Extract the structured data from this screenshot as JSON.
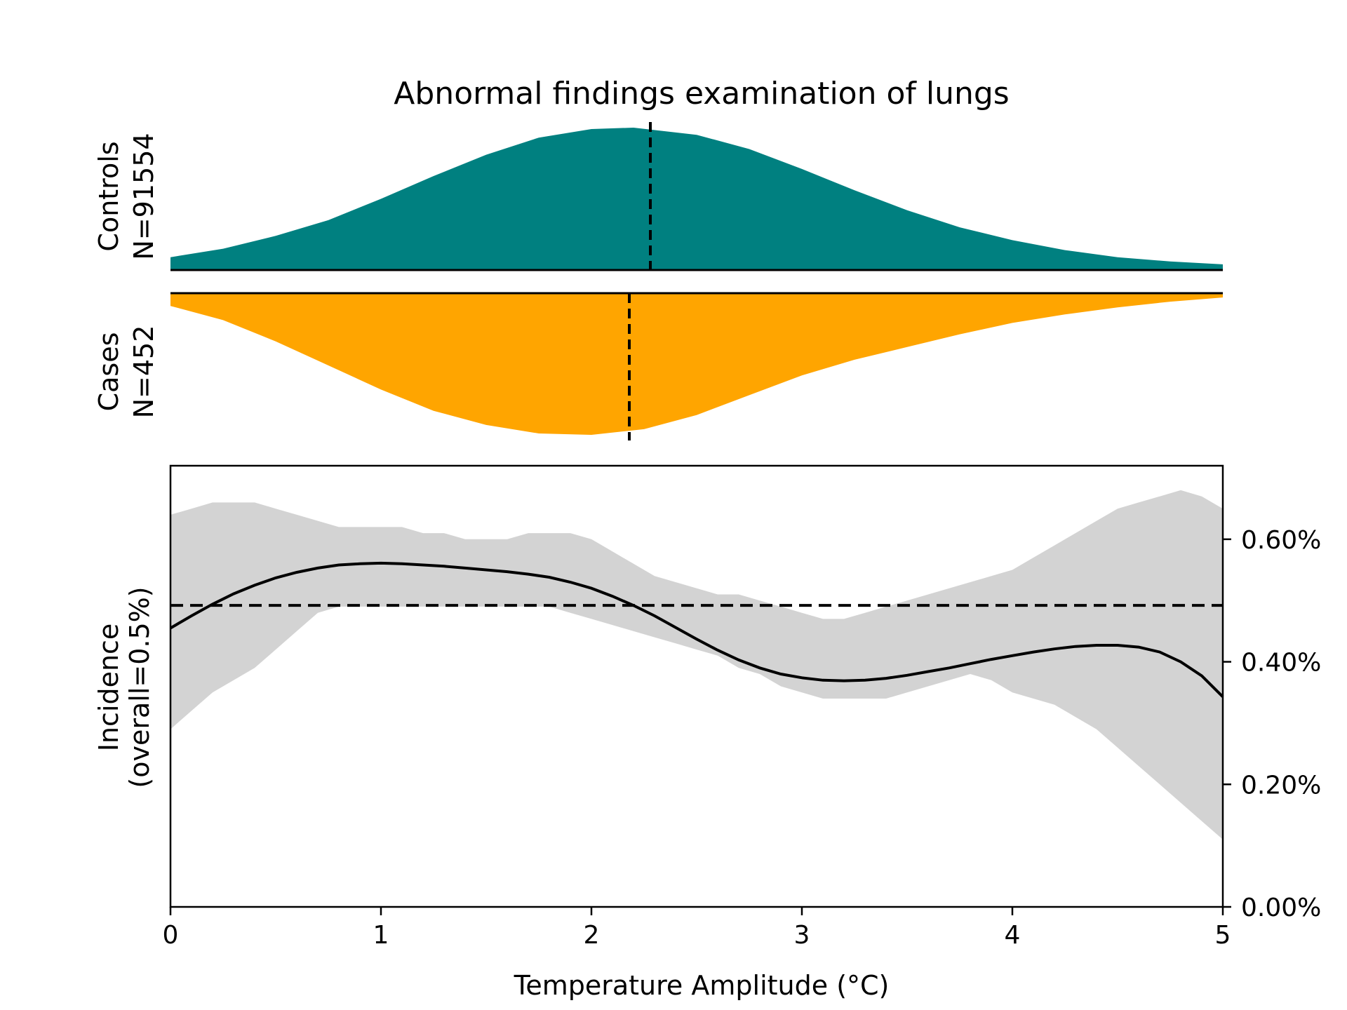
{
  "chart_data": {
    "type": "area",
    "title": "Abnormal findings examination of lungs",
    "xlabel": "Temperature Amplitude (°C)",
    "xlim": [
      0,
      5
    ],
    "x_ticks": [
      "0",
      "1",
      "2",
      "3",
      "4",
      "5"
    ],
    "controls": {
      "label_line1": "Controls",
      "label_line2": "N=91554",
      "color": "#008080",
      "median": 2.28,
      "x": [
        0,
        0.25,
        0.5,
        0.75,
        1.0,
        1.25,
        1.5,
        1.75,
        2.0,
        2.2,
        2.5,
        2.75,
        3.0,
        3.25,
        3.5,
        3.75,
        4.0,
        4.25,
        4.5,
        4.75,
        5.0
      ],
      "density": [
        0.09,
        0.15,
        0.24,
        0.35,
        0.5,
        0.66,
        0.81,
        0.93,
        0.99,
        1.0,
        0.95,
        0.85,
        0.71,
        0.56,
        0.42,
        0.3,
        0.21,
        0.14,
        0.09,
        0.06,
        0.04
      ]
    },
    "cases": {
      "label_line1": "Cases",
      "label_line2": "N=452",
      "color": "#FFA500",
      "median": 2.18,
      "x": [
        0,
        0.25,
        0.5,
        0.75,
        1.0,
        1.25,
        1.5,
        1.75,
        2.0,
        2.25,
        2.5,
        2.75,
        3.0,
        3.25,
        3.5,
        3.75,
        4.0,
        4.25,
        4.5,
        4.75,
        5.0
      ],
      "density": [
        0.09,
        0.19,
        0.34,
        0.51,
        0.68,
        0.83,
        0.93,
        0.99,
        1.0,
        0.96,
        0.86,
        0.72,
        0.58,
        0.47,
        0.38,
        0.29,
        0.21,
        0.15,
        0.1,
        0.06,
        0.03
      ]
    },
    "incidence": {
      "ylabel_line1": "Incidence",
      "ylabel_line2": "(overall=0.5%)",
      "ylim": [
        0,
        0.0072
      ],
      "y_ticks": [
        0,
        0.002,
        0.004,
        0.006
      ],
      "y_tick_labels": [
        "0.00%",
        "0.20%",
        "0.40%",
        "0.60%"
      ],
      "overall": 0.00492,
      "x": [
        0,
        0.1,
        0.2,
        0.3,
        0.4,
        0.5,
        0.6,
        0.7,
        0.8,
        0.9,
        1.0,
        1.1,
        1.2,
        1.3,
        1.4,
        1.5,
        1.6,
        1.7,
        1.8,
        1.9,
        2.0,
        2.1,
        2.2,
        2.3,
        2.4,
        2.5,
        2.6,
        2.7,
        2.8,
        2.9,
        3.0,
        3.1,
        3.2,
        3.3,
        3.4,
        3.5,
        3.6,
        3.7,
        3.8,
        3.9,
        4.0,
        4.1,
        4.2,
        4.3,
        4.4,
        4.5,
        4.6,
        4.7,
        4.8,
        4.9,
        5.0
      ],
      "estimate": [
        0.00455,
        0.00475,
        0.00494,
        0.00511,
        0.00525,
        0.00537,
        0.00546,
        0.00553,
        0.00558,
        0.0056,
        0.00561,
        0.0056,
        0.00558,
        0.00556,
        0.00553,
        0.0055,
        0.00547,
        0.00543,
        0.00538,
        0.0053,
        0.0052,
        0.00507,
        0.00492,
        0.00475,
        0.00456,
        0.00437,
        0.00419,
        0.00403,
        0.0039,
        0.0038,
        0.00374,
        0.0037,
        0.00369,
        0.0037,
        0.00373,
        0.00378,
        0.00384,
        0.0039,
        0.00397,
        0.00404,
        0.0041,
        0.00416,
        0.00421,
        0.00425,
        0.00427,
        0.00427,
        0.00424,
        0.00416,
        0.004,
        0.00377,
        0.00343
      ],
      "upper": [
        0.0064,
        0.0065,
        0.0066,
        0.0066,
        0.0066,
        0.0065,
        0.0064,
        0.0063,
        0.0062,
        0.0062,
        0.0062,
        0.0062,
        0.0061,
        0.0061,
        0.006,
        0.006,
        0.006,
        0.0061,
        0.0061,
        0.0061,
        0.006,
        0.0058,
        0.0056,
        0.0054,
        0.0053,
        0.0052,
        0.0051,
        0.0051,
        0.005,
        0.0049,
        0.0048,
        0.0047,
        0.0047,
        0.0048,
        0.0049,
        0.005,
        0.0051,
        0.0052,
        0.0053,
        0.0054,
        0.0055,
        0.0057,
        0.0059,
        0.0061,
        0.0063,
        0.0065,
        0.0066,
        0.0067,
        0.0068,
        0.0067,
        0.0065
      ],
      "lower": [
        0.0029,
        0.0032,
        0.0035,
        0.0037,
        0.0039,
        0.0042,
        0.0045,
        0.0048,
        0.0049,
        0.0049,
        0.0049,
        0.0049,
        0.0049,
        0.0049,
        0.0049,
        0.0049,
        0.0049,
        0.0049,
        0.0049,
        0.0048,
        0.0047,
        0.0046,
        0.0045,
        0.0044,
        0.0043,
        0.0042,
        0.0041,
        0.0039,
        0.0038,
        0.0036,
        0.0035,
        0.0034,
        0.0034,
        0.0034,
        0.0034,
        0.0035,
        0.0036,
        0.0037,
        0.0038,
        0.0037,
        0.0035,
        0.0034,
        0.0033,
        0.0031,
        0.0029,
        0.0026,
        0.0023,
        0.002,
        0.0017,
        0.0014,
        0.0011
      ]
    }
  }
}
